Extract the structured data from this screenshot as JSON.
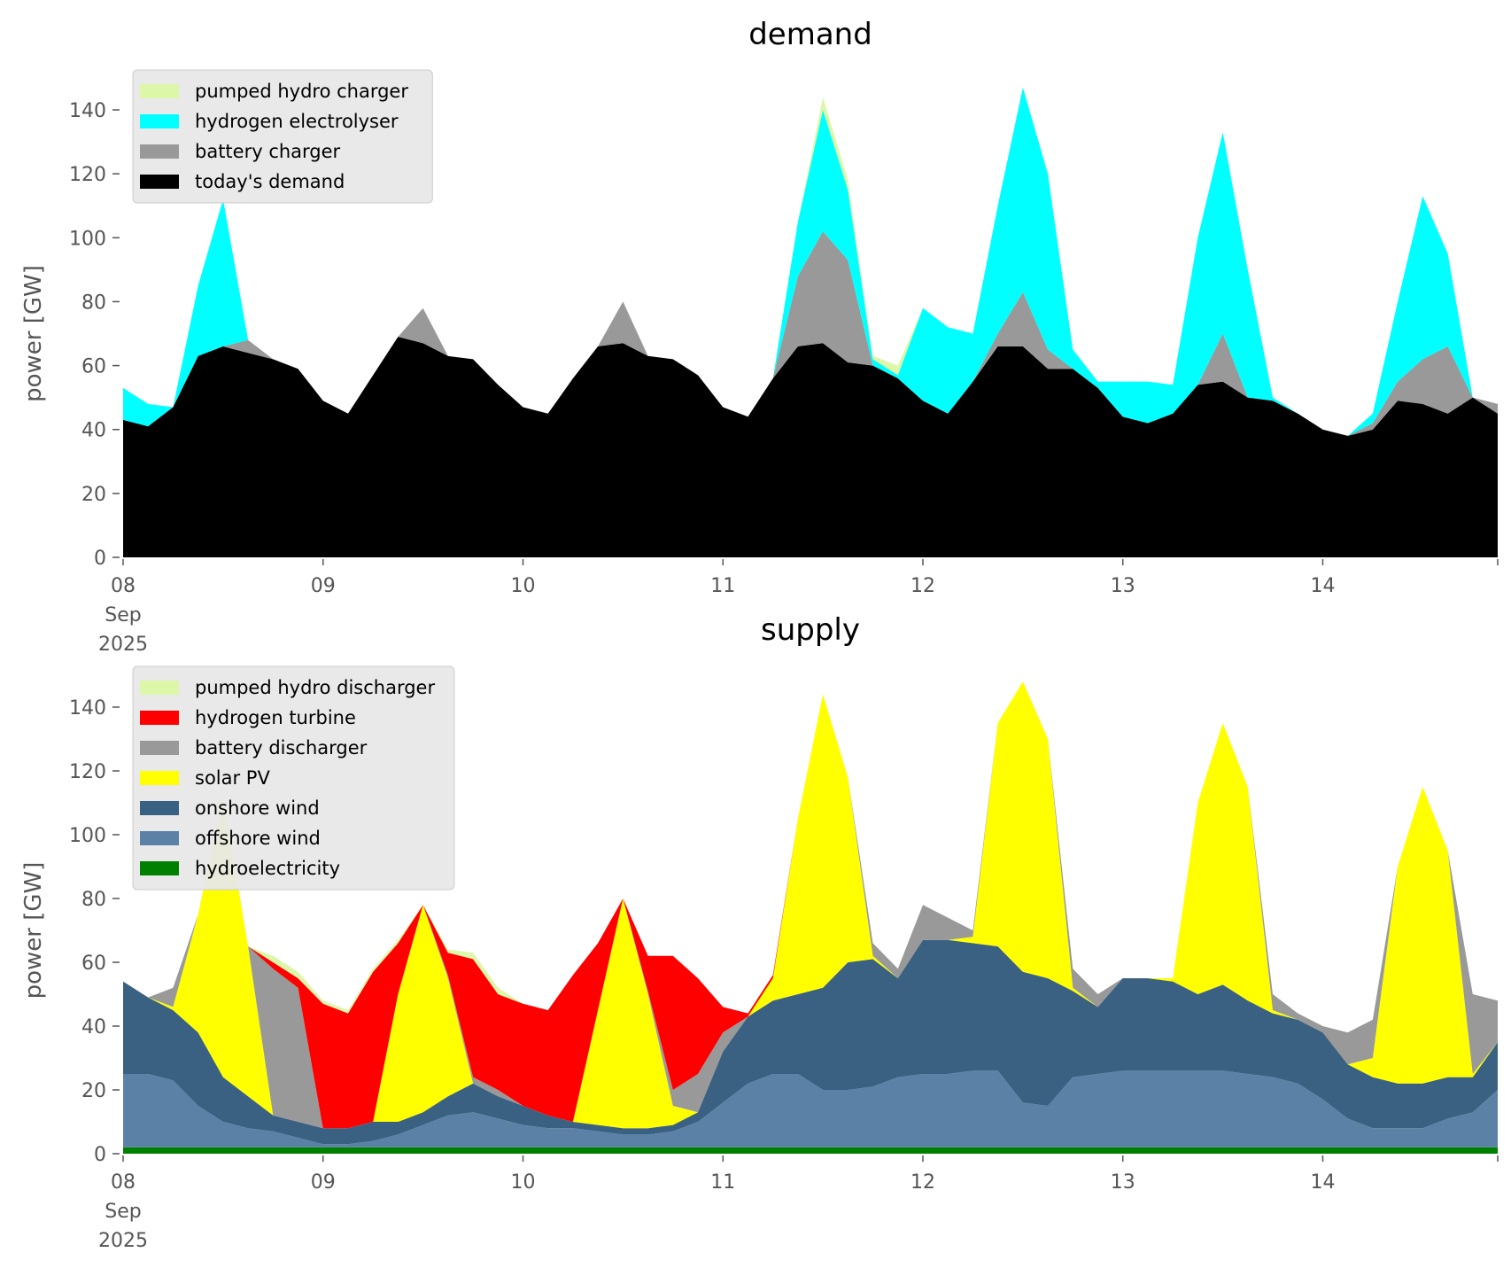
{
  "chart_data": [
    {
      "type": "area",
      "stacked": true,
      "title": "demand",
      "ylabel": "power [GW]",
      "xlabel": "",
      "ylim": [
        0,
        150
      ],
      "yticks": [
        0,
        20,
        40,
        60,
        80,
        100,
        120,
        140
      ],
      "xticks": [
        {
          "at": "2025-09-08 00:00",
          "label": [
            "08",
            "Sep",
            "2025"
          ]
        },
        {
          "at": "2025-09-09 00:00",
          "label": [
            "09"
          ]
        },
        {
          "at": "2025-09-10 00:00",
          "label": [
            "10"
          ]
        },
        {
          "at": "2025-09-11 00:00",
          "label": [
            "11"
          ]
        },
        {
          "at": "2025-09-12 00:00",
          "label": [
            "12"
          ]
        },
        {
          "at": "2025-09-13 00:00",
          "label": [
            "13"
          ]
        },
        {
          "at": "2025-09-14 00:00",
          "label": [
            "14"
          ]
        }
      ],
      "legend_position": "upper-left",
      "grid": false,
      "series": [
        {
          "name": "today's demand",
          "color": "#000000",
          "values": [
            43,
            41,
            47,
            63,
            66,
            64,
            62,
            59,
            49,
            45,
            57,
            69,
            67,
            63,
            62,
            54,
            47,
            45,
            56,
            66,
            67,
            63,
            62,
            57,
            47,
            44,
            56,
            66,
            67,
            61,
            60,
            56,
            49,
            45,
            55,
            66,
            66,
            59,
            59,
            53,
            44,
            42,
            45,
            54,
            55,
            50,
            49,
            45,
            40,
            38,
            40,
            49,
            48,
            45,
            50,
            45
          ]
        },
        {
          "name": "battery charger",
          "color": "#999999",
          "values": [
            0,
            0,
            0,
            0,
            0,
            4,
            0,
            0,
            0,
            0,
            0,
            0,
            11,
            0,
            0,
            0,
            0,
            0,
            0,
            0,
            13,
            0,
            0,
            0,
            0,
            0,
            0,
            22,
            35,
            32,
            0,
            0,
            0,
            0,
            0,
            4,
            17,
            6,
            0,
            0,
            0,
            0,
            0,
            0,
            15,
            0,
            0,
            0,
            0,
            0,
            2,
            6,
            14,
            21,
            0,
            3
          ]
        },
        {
          "name": "hydrogen electrolyser",
          "color": "#00ffff",
          "values": [
            10,
            7,
            0,
            22,
            46,
            0,
            0,
            0,
            0,
            0,
            0,
            0,
            0,
            0,
            0,
            0,
            0,
            0,
            0,
            0,
            0,
            0,
            0,
            0,
            0,
            0,
            0,
            17,
            38,
            22,
            2,
            1,
            29,
            27,
            15,
            40,
            64,
            55,
            6,
            2,
            11,
            13,
            9,
            46,
            63,
            40,
            1,
            0,
            0,
            0,
            3,
            25,
            51,
            29,
            0,
            0
          ]
        },
        {
          "name": "pumped hydro charger",
          "color": "#dcf7a8",
          "values": [
            0,
            0,
            0,
            0,
            0,
            0,
            0,
            0,
            0,
            0,
            0,
            0,
            0,
            0,
            0,
            0,
            0,
            0,
            0,
            0,
            0,
            0,
            0,
            0,
            0,
            0,
            0,
            0,
            4,
            3,
            1,
            3,
            0,
            0,
            0,
            0,
            0,
            0,
            0,
            0,
            0,
            0,
            0,
            0,
            0,
            0,
            0,
            0,
            0,
            0,
            0,
            0,
            0,
            0,
            0,
            0
          ]
        }
      ]
    },
    {
      "type": "area",
      "stacked": true,
      "title": "supply",
      "ylabel": "power [GW]",
      "xlabel": "",
      "ylim": [
        0,
        150
      ],
      "yticks": [
        0,
        20,
        40,
        60,
        80,
        100,
        120,
        140
      ],
      "xticks": [
        {
          "at": "2025-09-08 00:00",
          "label": [
            "08",
            "Sep",
            "2025"
          ]
        },
        {
          "at": "2025-09-09 00:00",
          "label": [
            "09"
          ]
        },
        {
          "at": "2025-09-10 00:00",
          "label": [
            "10"
          ]
        },
        {
          "at": "2025-09-11 00:00",
          "label": [
            "11"
          ]
        },
        {
          "at": "2025-09-12 00:00",
          "label": [
            "12"
          ]
        },
        {
          "at": "2025-09-13 00:00",
          "label": [
            "13"
          ]
        },
        {
          "at": "2025-09-14 00:00",
          "label": [
            "14"
          ]
        }
      ],
      "legend_position": "upper-left",
      "grid": false,
      "series": [
        {
          "name": "hydroelectricity",
          "color": "#008000",
          "values": [
            2,
            2,
            2,
            2,
            2,
            2,
            2,
            2,
            2,
            2,
            2,
            2,
            2,
            2,
            2,
            2,
            2,
            2,
            2,
            2,
            2,
            2,
            2,
            2,
            2,
            2,
            2,
            2,
            2,
            2,
            2,
            2,
            2,
            2,
            2,
            2,
            2,
            2,
            2,
            2,
            2,
            2,
            2,
            2,
            2,
            2,
            2,
            2,
            2,
            2,
            2,
            2,
            2,
            2,
            2,
            2
          ]
        },
        {
          "name": "offshore wind",
          "color": "#5b82a6",
          "values": [
            23,
            23,
            21,
            13,
            8,
            6,
            5,
            3,
            1,
            1,
            2,
            4,
            7,
            10,
            11,
            9,
            7,
            6,
            6,
            5,
            4,
            4,
            5,
            8,
            14,
            20,
            23,
            23,
            18,
            18,
            19,
            22,
            23,
            23,
            24,
            24,
            14,
            13,
            22,
            23,
            24,
            24,
            24,
            24,
            24,
            23,
            22,
            20,
            15,
            9,
            6,
            6,
            6,
            9,
            11,
            18
          ]
        },
        {
          "name": "onshore wind",
          "color": "#3b6182",
          "values": [
            29,
            24,
            22,
            23,
            14,
            10,
            5,
            5,
            5,
            5,
            6,
            4,
            4,
            6,
            9,
            7,
            6,
            4,
            2,
            2,
            2,
            2,
            2,
            3,
            16,
            21,
            23,
            25,
            32,
            40,
            40,
            31,
            42,
            42,
            40,
            39,
            41,
            40,
            27,
            21,
            29,
            29,
            28,
            24,
            27,
            23,
            20,
            20,
            21,
            17,
            16,
            14,
            14,
            13,
            11,
            15
          ]
        },
        {
          "name": "solar PV",
          "color": "#ffff00",
          "values": [
            0,
            0,
            1,
            37,
            88,
            47,
            0,
            0,
            0,
            0,
            0,
            40,
            65,
            37,
            0,
            0,
            0,
            0,
            0,
            36,
            72,
            42,
            6,
            0,
            0,
            0,
            7,
            55,
            92,
            58,
            1,
            0,
            0,
            0,
            2,
            70,
            91,
            75,
            1,
            0,
            0,
            0,
            1,
            60,
            82,
            67,
            1,
            0,
            0,
            0,
            6,
            68,
            93,
            71,
            1,
            0
          ]
        },
        {
          "name": "battery discharger",
          "color": "#999999",
          "values": [
            0,
            0,
            6,
            0,
            0,
            0,
            46,
            42,
            0,
            0,
            0,
            0,
            0,
            1,
            2,
            2,
            0,
            0,
            0,
            0,
            0,
            1,
            5,
            12,
            6,
            0,
            0,
            0,
            0,
            0,
            4,
            3,
            11,
            7,
            2,
            0,
            0,
            0,
            6,
            4,
            0,
            0,
            0,
            0,
            0,
            0,
            5,
            2,
            2,
            10,
            12,
            0,
            0,
            0,
            25,
            13
          ]
        },
        {
          "name": "hydrogen turbine",
          "color": "#ff0000",
          "values": [
            0,
            0,
            0,
            0,
            0,
            0,
            2,
            3,
            39,
            36,
            47,
            16,
            0,
            7,
            37,
            30,
            32,
            33,
            46,
            21,
            0,
            11,
            42,
            30,
            8,
            1,
            1,
            0,
            0,
            0,
            0,
            0,
            0,
            0,
            0,
            0,
            0,
            0,
            0,
            0,
            0,
            0,
            0,
            0,
            0,
            0,
            0,
            0,
            0,
            0,
            0,
            0,
            0,
            0,
            0,
            0
          ]
        },
        {
          "name": "pumped hydro discharger",
          "color": "#dcf7a8",
          "values": [
            0,
            0,
            0,
            0,
            0,
            0,
            2,
            2,
            1,
            1,
            1,
            1,
            0,
            1,
            2,
            2,
            0,
            0,
            0,
            0,
            0,
            0,
            0,
            0,
            0,
            0,
            0,
            0,
            0,
            0,
            0,
            0,
            0,
            0,
            0,
            0,
            0,
            0,
            0,
            0,
            0,
            0,
            0,
            0,
            0,
            0,
            0,
            0,
            0,
            0,
            0,
            0,
            0,
            0,
            0,
            0
          ]
        }
      ]
    }
  ],
  "x": [
    "2025-09-08 00:00",
    "2025-09-08 03:00",
    "2025-09-08 06:00",
    "2025-09-08 09:00",
    "2025-09-08 12:00",
    "2025-09-08 15:00",
    "2025-09-08 18:00",
    "2025-09-08 21:00",
    "2025-09-09 00:00",
    "2025-09-09 03:00",
    "2025-09-09 06:00",
    "2025-09-09 09:00",
    "2025-09-09 12:00",
    "2025-09-09 15:00",
    "2025-09-09 18:00",
    "2025-09-09 21:00",
    "2025-09-10 00:00",
    "2025-09-10 03:00",
    "2025-09-10 06:00",
    "2025-09-10 09:00",
    "2025-09-10 12:00",
    "2025-09-10 15:00",
    "2025-09-10 18:00",
    "2025-09-10 21:00",
    "2025-09-11 00:00",
    "2025-09-11 03:00",
    "2025-09-11 06:00",
    "2025-09-11 09:00",
    "2025-09-11 12:00",
    "2025-09-11 15:00",
    "2025-09-11 18:00",
    "2025-09-11 21:00",
    "2025-09-12 00:00",
    "2025-09-12 03:00",
    "2025-09-12 06:00",
    "2025-09-12 09:00",
    "2025-09-12 12:00",
    "2025-09-12 15:00",
    "2025-09-12 18:00",
    "2025-09-12 21:00",
    "2025-09-13 00:00",
    "2025-09-13 03:00",
    "2025-09-13 06:00",
    "2025-09-13 09:00",
    "2025-09-13 12:00",
    "2025-09-13 15:00",
    "2025-09-13 18:00",
    "2025-09-13 21:00",
    "2025-09-14 00:00",
    "2025-09-14 03:00",
    "2025-09-14 06:00",
    "2025-09-14 09:00",
    "2025-09-14 12:00",
    "2025-09-14 15:00",
    "2025-09-14 18:00",
    "2025-09-14 21:00"
  ]
}
